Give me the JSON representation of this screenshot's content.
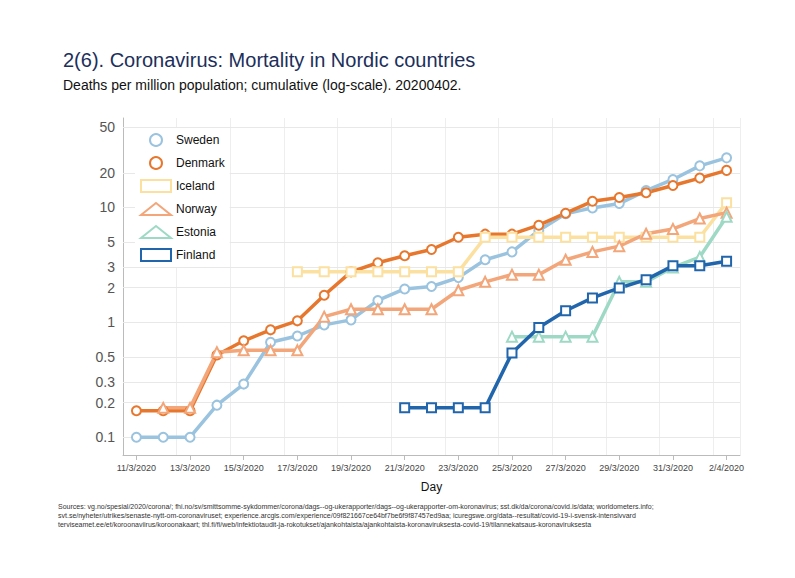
{
  "chart_data": {
    "type": "line",
    "title": "2(6). Coronavirus: Mortality in Nordic countries",
    "subtitle": "Deaths per million population; cumulative (log-scale). 20200402.",
    "x_label": "Day",
    "categories": [
      "11/3/2020",
      null,
      "13/3/2020",
      null,
      "15/3/2020",
      null,
      "17/3/2020",
      null,
      "19/3/2020",
      null,
      "21/3/2020",
      null,
      "23/3/2020",
      null,
      "25/3/2020",
      null,
      "27/3/2020",
      null,
      "29/3/2020",
      null,
      "31/3/2020",
      null,
      "2/4/2020"
    ],
    "series": [
      {
        "name": "Sweden",
        "color": "#9ac3df",
        "marker": "circle",
        "values": [
          0.1,
          0.1,
          0.1,
          0.19,
          0.29,
          0.67,
          0.76,
          0.95,
          1.05,
          1.55,
          1.95,
          2.05,
          2.45,
          3.5,
          4.1,
          6.3,
          8.8,
          9.9,
          10.8,
          14,
          17.5,
          23,
          27
        ]
      },
      {
        "name": "Denmark",
        "color": "#e8772e",
        "marker": "circle",
        "values": [
          0.17,
          0.17,
          0.17,
          0.52,
          0.69,
          0.86,
          1.03,
          1.72,
          2.75,
          3.3,
          3.8,
          4.3,
          5.5,
          5.85,
          5.85,
          7,
          8.9,
          11.3,
          12.2,
          13.4,
          15.5,
          18,
          21
        ]
      },
      {
        "name": "Iceland",
        "color": "#fbe0a0",
        "marker": "square",
        "values": [
          null,
          null,
          null,
          null,
          null,
          null,
          2.75,
          2.75,
          2.75,
          2.75,
          2.75,
          2.75,
          2.75,
          5.5,
          5.5,
          5.5,
          5.5,
          5.5,
          5.5,
          5.5,
          5.5,
          5.5,
          11
        ]
      },
      {
        "name": "Norway",
        "color": "#f2a679",
        "marker": "triangle",
        "values": [
          null,
          0.18,
          0.18,
          0.55,
          0.57,
          0.57,
          0.57,
          1.12,
          1.3,
          1.3,
          1.3,
          1.3,
          1.9,
          2.25,
          2.6,
          2.6,
          3.5,
          4.1,
          4.6,
          5.9,
          6.5,
          8,
          9
        ]
      },
      {
        "name": "Estonia",
        "color": "#9ed9c6",
        "marker": "triangle",
        "values": [
          null,
          null,
          null,
          null,
          null,
          null,
          null,
          null,
          null,
          null,
          null,
          null,
          null,
          null,
          0.75,
          0.75,
          0.75,
          0.75,
          2.25,
          2.25,
          3,
          3.7,
          8.3
        ]
      },
      {
        "name": "Finland",
        "color": "#2166ac",
        "marker": "square",
        "values": [
          null,
          null,
          null,
          null,
          null,
          null,
          null,
          null,
          null,
          null,
          0.18,
          0.18,
          0.18,
          0.18,
          0.54,
          0.9,
          1.26,
          1.63,
          1.99,
          2.35,
          3.1,
          3.1,
          3.4
        ]
      }
    ],
    "ylim": [
      0.07,
      60
    ],
    "yticks": [
      0.1,
      0.2,
      0.3,
      0.5,
      1,
      2,
      3,
      5,
      10,
      20,
      50
    ],
    "log": "y",
    "grid": true,
    "legend": "upper left",
    "source": [
      "Sources: vg.no/spesial/2020/corona/; fhi.no/sv/smittsomme-sykdommer/corona/dags--og-ukerapporter/dags--og-ukerapporter-om-koronavirus; sst.dk/da/corona/covid.is/data; worldometers.info;",
      "svt.se/nyheter/utrikes/senaste-nytt-om-coronaviruset; experience.arcgis.com/experience/09f821667ce64bf7be6f9f87457ed9aa; icuregswe.org/data--resultat/covid-19-i-svensk-intensivvard",
      "terviseamet.ee/et/koroonaviirus/koroonakaart; thl.fi/fi/web/infektiotaudit-ja-rokotukset/ajankohtaista/ajankohtaista-koronaviruksesta-covid-19/tilannekatsaus-koronaviruksesta"
    ]
  }
}
